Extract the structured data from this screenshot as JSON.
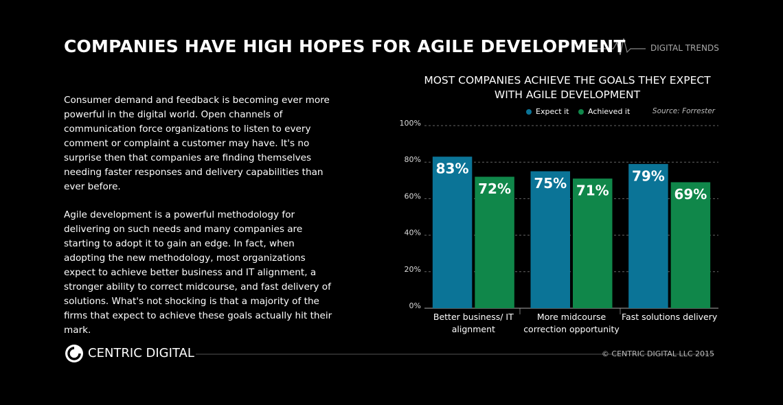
{
  "header": {
    "title": "COMPANIES HAVE HIGH HOPES FOR AGILE DEVELOPMENT",
    "brand": "DIGITAL TRENDS"
  },
  "body": {
    "paragraphs": [
      "Consumer demand and feedback is becoming ever more powerful in the digital world. Open channels of communication force organizations to listen to every comment or complaint a customer may have. It's no surprise then that companies are finding themselves needing faster responses and delivery capabilities than ever before.",
      "Agile development is a powerful methodology for delivering on such needs and many companies are starting to adopt it to gain an edge. In fact, when adopting the new methodology, most organizations expect to achieve better business and IT alignment, a stronger ability to correct midcourse, and fast delivery of solutions. What's not shocking is that a majority of the firms that expect to achieve these goals actually hit their mark."
    ]
  },
  "footer": {
    "logo": "CENTRIC DIGITAL",
    "copyright": "© CENTRIC DIGITAL LLC 2015"
  },
  "chart_data": {
    "type": "bar",
    "title": "MOST COMPANIES ACHIEVE THE GOALS THEY EXPECT WITH AGILE DEVELOPMENT",
    "source": "Source:  Forrester",
    "categories": [
      "Better business/ IT alignment",
      "More midcourse correction opportunity",
      "Fast solutions delivery"
    ],
    "series": [
      {
        "name": "Expect it",
        "color": "#0b7497",
        "values": [
          83,
          75,
          79
        ],
        "value_labels": [
          "83%",
          "75%",
          "79%"
        ]
      },
      {
        "name": "Achieved it",
        "color": "#10874a",
        "values": [
          72,
          71,
          69
        ],
        "value_labels": [
          "72%",
          "71%",
          "69%"
        ]
      }
    ],
    "ylim": [
      0,
      100
    ],
    "yticks": [
      {
        "value": 0,
        "label": "0%"
      },
      {
        "value": 20,
        "label": "20%"
      },
      {
        "value": 40,
        "label": "40%"
      },
      {
        "value": 60,
        "label": "60%"
      },
      {
        "value": 80,
        "label": "80%"
      },
      {
        "value": 100,
        "label": "100%"
      }
    ],
    "grid": true
  }
}
